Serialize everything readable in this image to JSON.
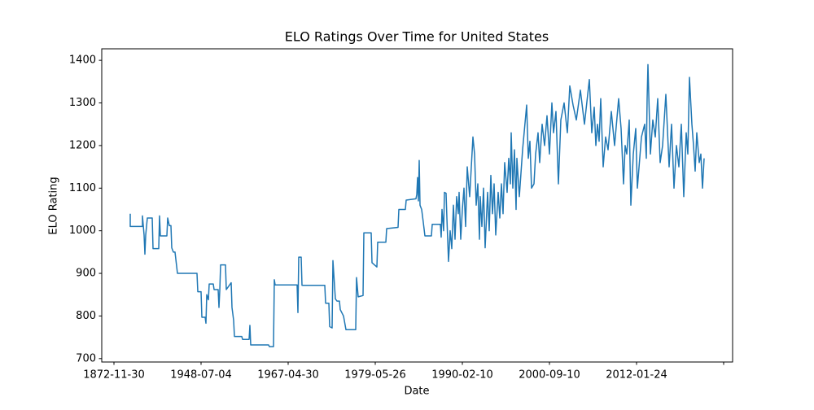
{
  "chart_data": {
    "type": "line",
    "title": "ELO Ratings Over Time for United States",
    "xlabel": "Date",
    "ylabel": "ELO Rating",
    "color": "#1f77b4",
    "x": [
      0,
      0,
      15,
      15,
      17,
      18,
      19,
      21,
      27,
      28,
      35,
      36,
      37,
      45,
      46,
      48,
      50,
      51,
      53,
      55,
      58,
      82,
      83,
      87,
      88,
      92,
      93,
      94,
      96,
      97,
      102,
      103,
      108,
      109,
      110,
      111,
      117,
      118,
      124,
      125,
      127,
      128,
      137,
      138,
      146,
      147,
      148,
      170,
      171,
      176,
      177,
      178,
      205,
      206,
      207,
      210,
      211,
      239,
      240,
      244,
      245,
      248,
      249,
      252,
      254,
      257,
      258,
      262,
      265,
      277,
      278,
      280,
      286,
      287,
      296,
      297,
      303,
      304,
      314,
      315,
      329,
      330,
      338,
      339,
      351,
      352,
      353,
      354,
      355,
      356,
      358,
      360,
      362,
      370,
      371,
      381,
      382,
      383,
      385,
      386,
      388,
      389,
      391,
      393,
      395,
      397,
      399,
      401,
      403,
      404,
      406,
      408,
      410,
      412,
      414,
      417,
      421,
      423,
      425,
      427,
      429,
      430,
      432,
      434,
      436,
      439,
      441,
      443,
      445,
      447,
      449,
      452,
      454,
      456,
      458,
      460,
      463,
      465,
      467,
      468,
      470,
      472,
      474,
      475,
      478,
      482,
      487,
      489,
      491,
      493,
      496,
      498,
      501,
      503,
      506,
      509,
      512,
      515,
      518,
      520,
      523,
      526,
      529,
      533,
      537,
      540,
      544,
      548,
      553,
      558,
      564,
      567,
      570,
      572,
      574,
      576,
      578,
      581,
      584,
      587,
      591,
      595,
      600,
      603,
      606,
      608,
      610,
      613,
      615,
      618,
      621,
      623,
      628,
      632,
      634,
      635,
      636,
      639,
      642,
      645,
      648,
      651,
      654,
      658,
      662,
      665,
      668,
      671,
      674,
      677,
      680,
      683,
      685,
      687,
      690,
      692,
      694,
      696,
      699,
      701,
      703,
      705
    ],
    "values": [
      1040,
      1010,
      1010,
      1035,
      990,
      945,
      990,
      1030,
      1030,
      958,
      958,
      1035,
      988,
      988,
      1030,
      1012,
      1012,
      960,
      950,
      950,
      900,
      900,
      857,
      857,
      797,
      797,
      783,
      850,
      838,
      875,
      875,
      862,
      862,
      820,
      860,
      920,
      920,
      862,
      878,
      820,
      790,
      752,
      752,
      745,
      745,
      778,
      732,
      732,
      728,
      728,
      885,
      873,
      873,
      808,
      938,
      938,
      872,
      872,
      830,
      830,
      775,
      772,
      930,
      840,
      835,
      835,
      815,
      800,
      768,
      768,
      890,
      845,
      848,
      995,
      995,
      925,
      915,
      973,
      973,
      1005,
      1008,
      1050,
      1050,
      1072,
      1075,
      1085,
      1125,
      1070,
      1165,
      1060,
      1050,
      1020,
      988,
      988,
      1015,
      1015,
      985,
      1050,
      1000,
      1090,
      1088,
      1030,
      928,
      1000,
      958,
      1060,
      980,
      1080,
      1040,
      1090,
      980,
      1050,
      1100,
      1010,
      1150,
      1080,
      1220,
      1180,
      1060,
      1110,
      980,
      1080,
      1010,
      1100,
      960,
      1090,
      1000,
      1130,
      1040,
      1110,
      990,
      1090,
      1030,
      1110,
      1040,
      1160,
      1090,
      1170,
      1110,
      1230,
      1100,
      1190,
      1050,
      1170,
      1080,
      1190,
      1295,
      1170,
      1210,
      1100,
      1110,
      1180,
      1230,
      1160,
      1250,
      1200,
      1270,
      1180,
      1300,
      1230,
      1280,
      1110,
      1260,
      1300,
      1230,
      1340,
      1295,
      1260,
      1330,
      1250,
      1355,
      1230,
      1290,
      1200,
      1250,
      1210,
      1310,
      1150,
      1220,
      1190,
      1280,
      1200,
      1310,
      1240,
      1110,
      1200,
      1180,
      1260,
      1060,
      1180,
      1240,
      1100,
      1220,
      1250,
      1170,
      1310,
      1390,
      1180,
      1260,
      1220,
      1310,
      1160,
      1200,
      1320,
      1150,
      1250,
      1100,
      1200,
      1150,
      1250,
      1080,
      1230,
      1180,
      1360,
      1250,
      1200,
      1140,
      1230,
      1160,
      1180,
      1100,
      1170
    ],
    "xlim": [
      -35,
      740
    ],
    "ylim": [
      692,
      1427
    ],
    "xticks": [
      {
        "value": -20,
        "label": "1872-11-30"
      },
      {
        "value": 87,
        "label": "1948-07-04"
      },
      {
        "value": 194,
        "label": "1967-04-30"
      },
      {
        "value": 301,
        "label": "1979-05-26"
      },
      {
        "value": 408,
        "label": "1990-02-10"
      },
      {
        "value": 515,
        "label": "2000-09-10"
      },
      {
        "value": 622,
        "label": "2012-01-24"
      },
      {
        "value": 729,
        "label": null
      }
    ],
    "yticks": [
      700,
      800,
      900,
      1000,
      1100,
      1200,
      1300,
      1400
    ]
  }
}
